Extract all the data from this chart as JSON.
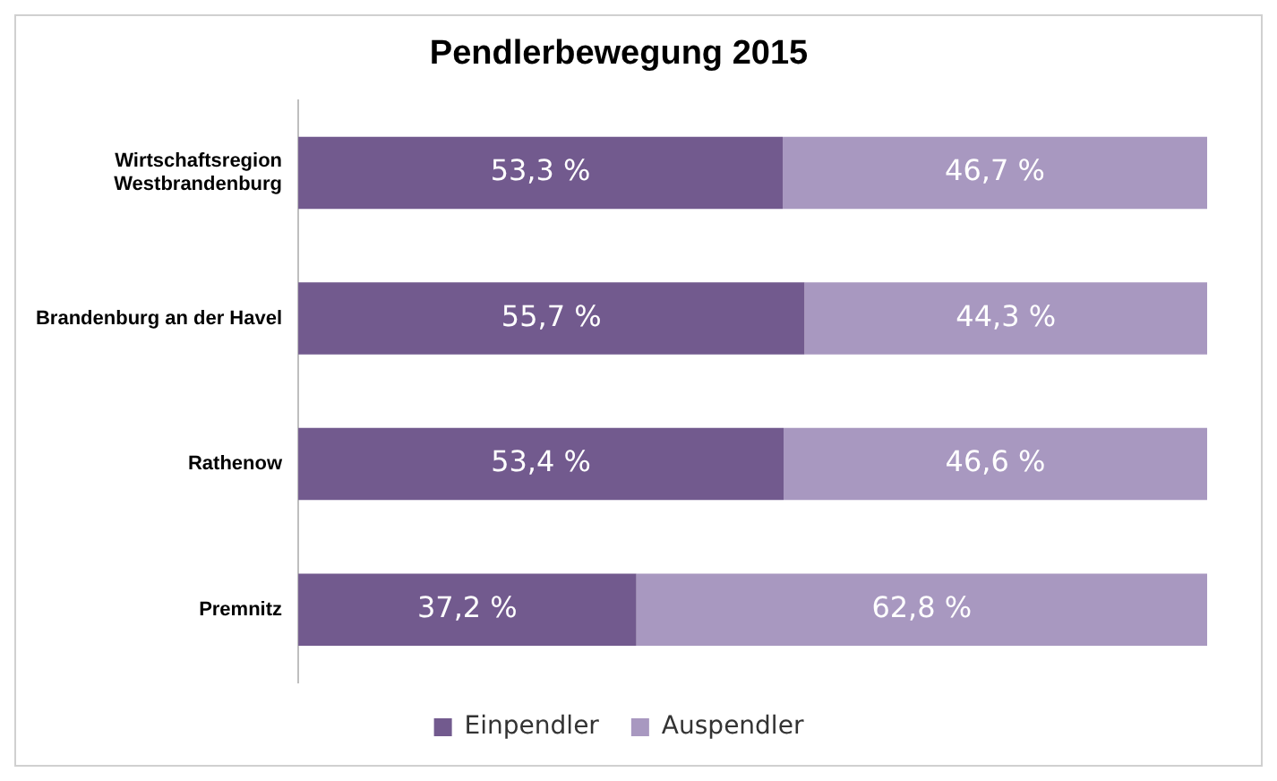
{
  "chart_data": {
    "type": "bar",
    "orientation": "horizontal",
    "stacked": true,
    "title": "Pendlerbewegung 2015",
    "categories": [
      "Wirtschaftsregion Westbrandenburg",
      "Brandenburg an der Havel",
      "Rathenow",
      "Premnitz"
    ],
    "series": [
      {
        "name": "Einpendler",
        "color": "#725a8e",
        "values": [
          53.3,
          55.7,
          53.4,
          37.2
        ],
        "value_labels": [
          "53,3 %",
          "55,7 %",
          "53,4 %",
          "37,2 %"
        ]
      },
      {
        "name": "Auspendler",
        "color": "#a898c0",
        "values": [
          46.7,
          44.3,
          46.6,
          62.8
        ],
        "value_labels": [
          "46,7 %",
          "44,3 %",
          "46,6 %",
          "62,8 %"
        ]
      }
    ],
    "legend": "bottom",
    "tick_labels": "y"
  }
}
